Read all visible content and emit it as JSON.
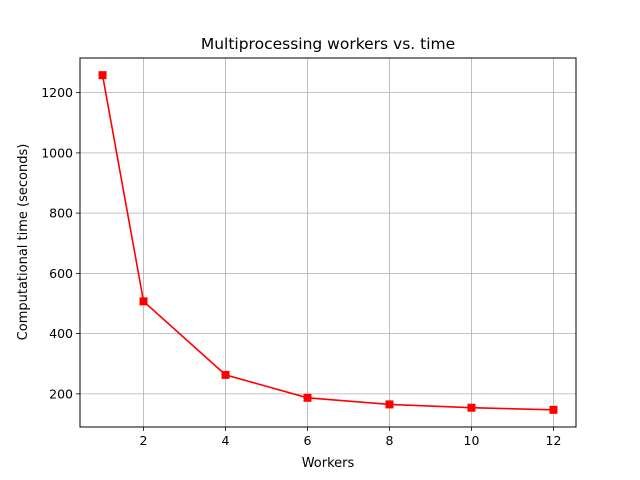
{
  "chart_data": {
    "type": "line",
    "title": "Multiprocessing workers vs. time",
    "xlabel": "Workers",
    "ylabel": "Computational time (seconds)",
    "xlim": [
      0.45,
      12.55
    ],
    "ylim": [
      90,
      1315
    ],
    "xticks": [
      2,
      4,
      6,
      8,
      10,
      12
    ],
    "yticks": [
      200,
      400,
      600,
      800,
      1000,
      1200
    ],
    "grid": true,
    "series": [
      {
        "color": "#ff0000",
        "marker": "square",
        "x": [
          1,
          2,
          4,
          6,
          8,
          10,
          12
        ],
        "y": [
          1258,
          507,
          263,
          187,
          165,
          154,
          147
        ]
      }
    ]
  }
}
